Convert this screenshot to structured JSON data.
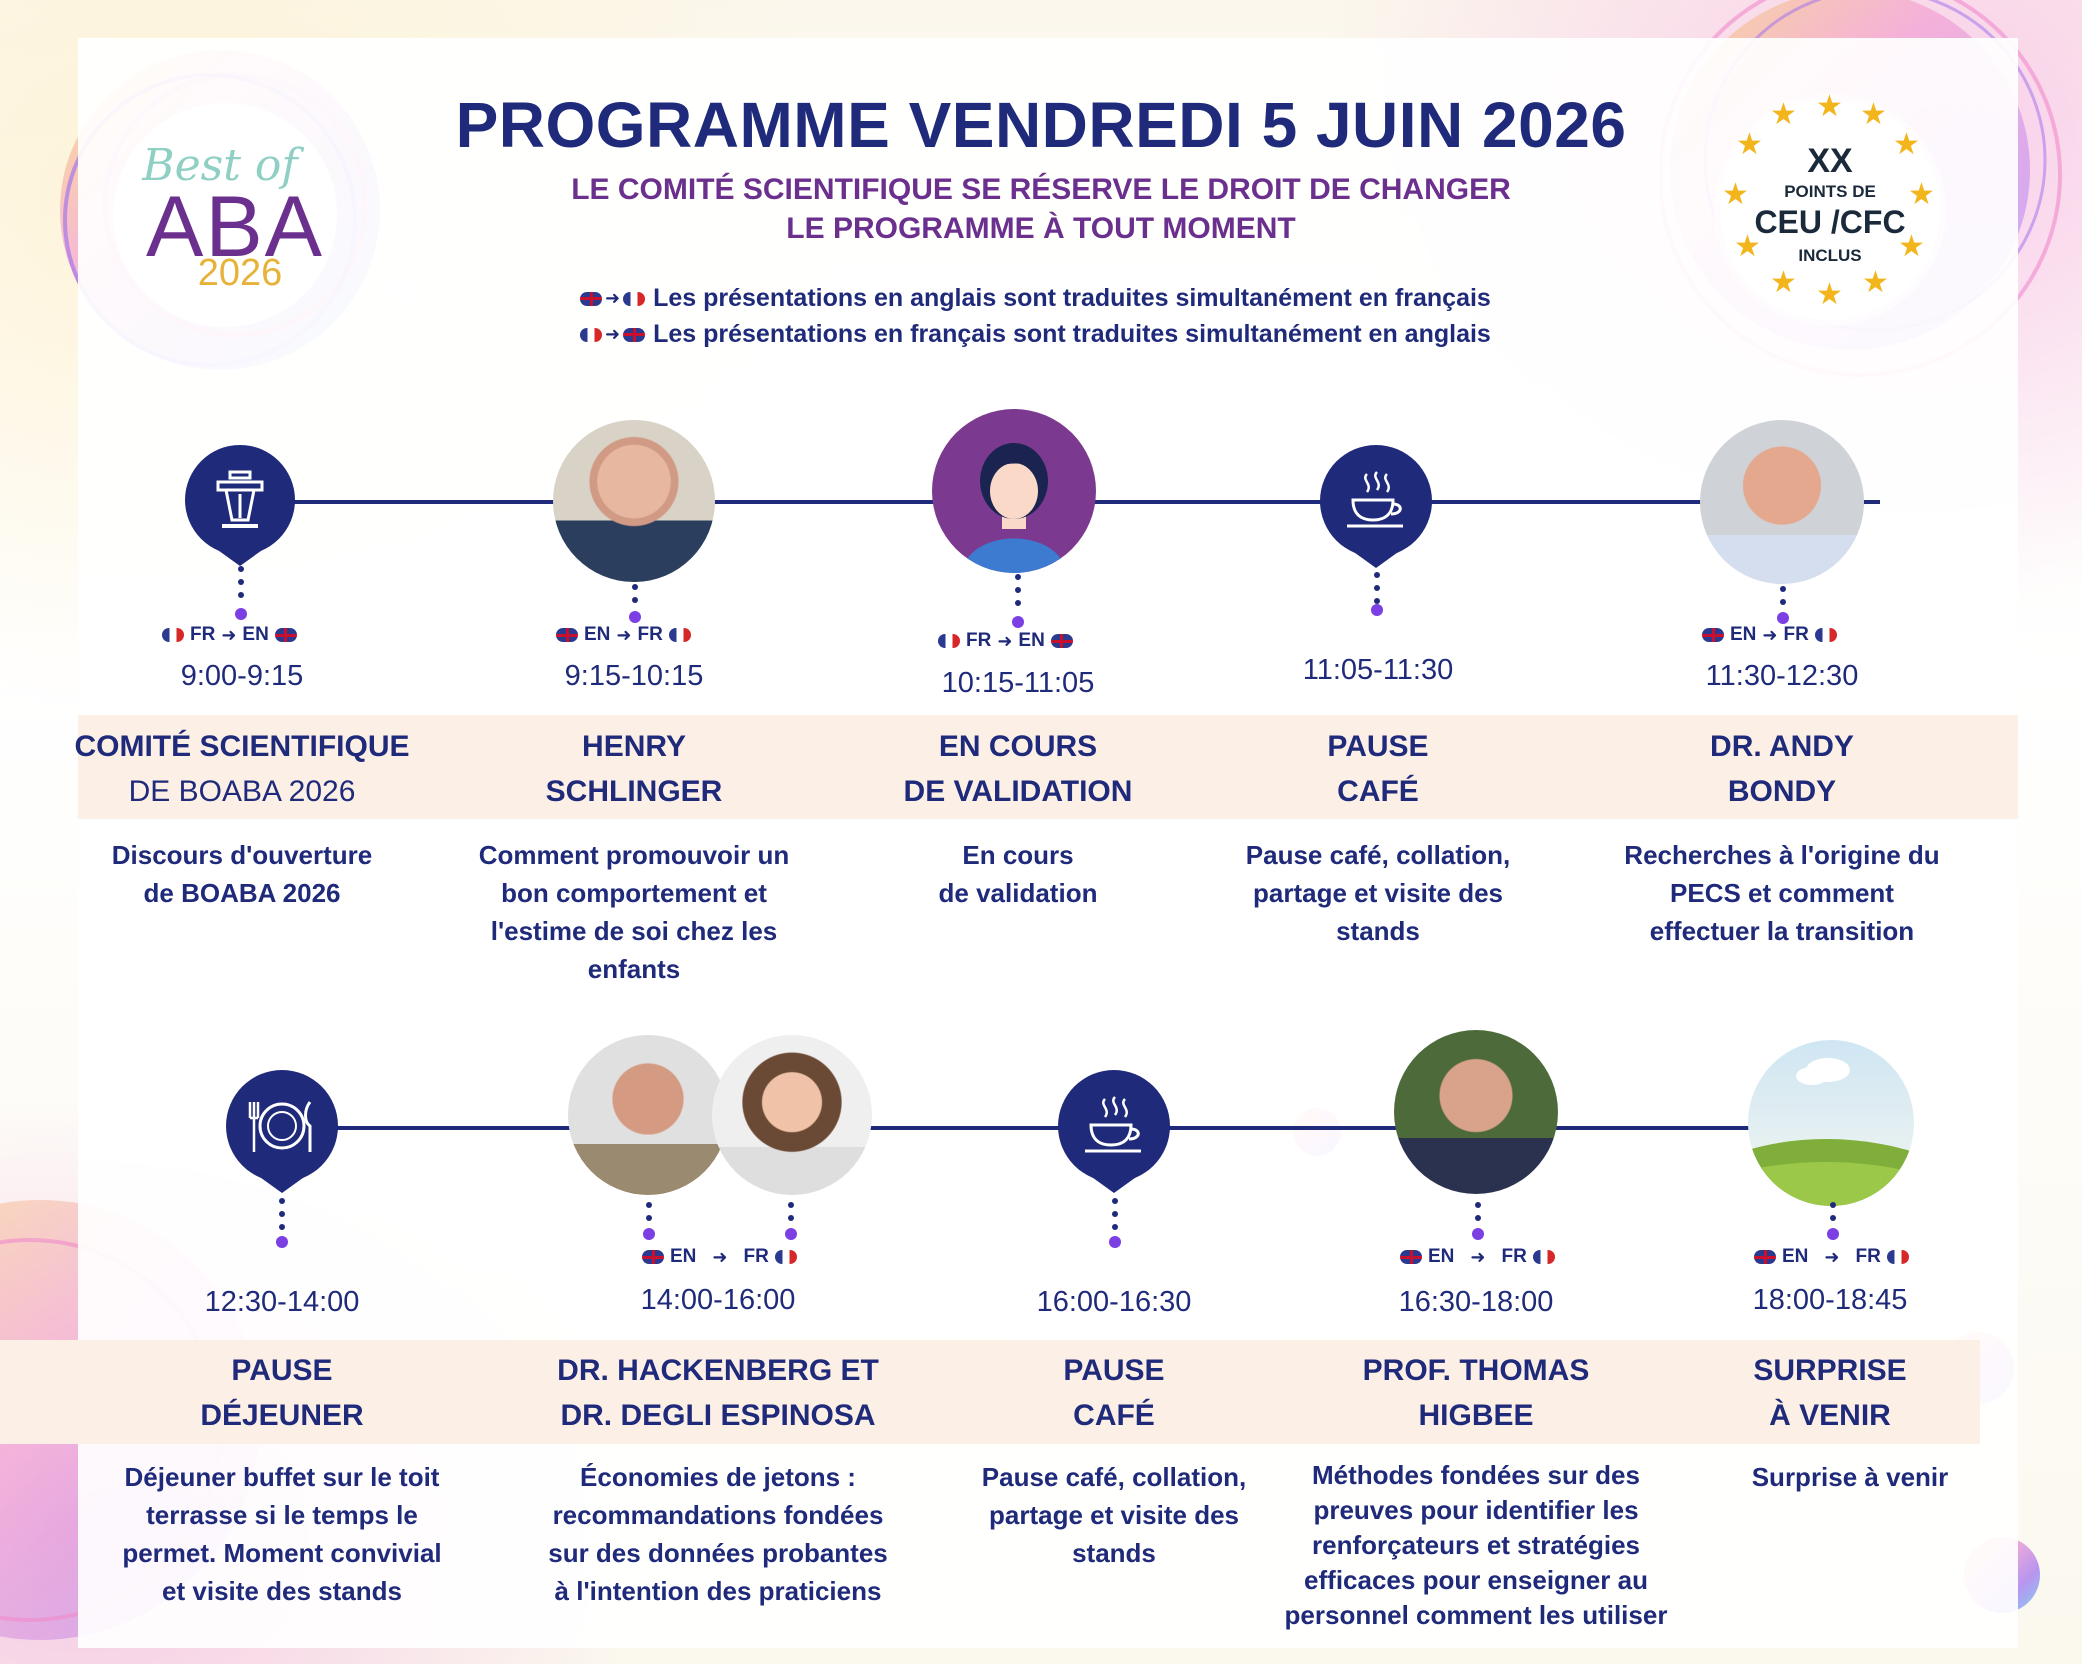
{
  "header": {
    "title": "PROGRAMME VENDREDI 5 JUIN 2026",
    "subtitle_line1": "LE COMITÉ SCIENTIFIQUE SE RÉSERVE LE DROIT DE CHANGER",
    "subtitle_line2": "LE PROGRAMME À TOUT MOMENT",
    "note_en_fr": "Les présentations en anglais sont traduites simultanément en français",
    "note_fr_en": "Les présentations en français sont traduites simultanément en anglais"
  },
  "logo": {
    "script": "Best of",
    "main": "ABA",
    "year": "2026"
  },
  "badge": {
    "line1": "XX",
    "line2": "POINTS DE",
    "line3": "CEU /CFC",
    "line4": "INCLUS"
  },
  "lang_labels": {
    "fr": "FR",
    "en": "EN"
  },
  "sessions": [
    {
      "id": "s1",
      "time": "9:00-9:15",
      "name_line1": "COMITÉ SCIENTIFIQUE",
      "name_line2": "DE BOABA 2026",
      "desc_lines": [
        "Discours d'ouverture",
        "de BOABA 2026"
      ],
      "icon": "podium-icon"
    },
    {
      "id": "s2",
      "time": "9:15-10:15",
      "name_line1": "HENRY",
      "name_line2": "SCHLINGER",
      "desc_lines": [
        "Comment promouvoir un",
        "bon comportement et",
        "l'estime de soi chez les",
        "enfants"
      ],
      "icon": "speaker-photo"
    },
    {
      "id": "s3",
      "time": "10:15-11:05",
      "name_line1": "EN COURS",
      "name_line2": "DE VALIDATION",
      "desc_lines": [
        "En cours",
        "de validation"
      ],
      "icon": "avatar-placeholder"
    },
    {
      "id": "s4",
      "time": "11:05-11:30",
      "name_line1": "PAUSE",
      "name_line2": "CAFÉ",
      "desc_lines": [
        "Pause café, collation,",
        "partage et visite des",
        "stands"
      ],
      "icon": "coffee-cup-icon"
    },
    {
      "id": "s5",
      "time": "11:30-12:30",
      "name_line1": "DR. ANDY",
      "name_line2": "BONDY",
      "desc_lines": [
        "Recherches à l'origine du",
        "PECS et comment",
        "effectuer la transition"
      ],
      "icon": "speaker-photo"
    },
    {
      "id": "s6",
      "time": "12:30-14:00",
      "name_line1": "PAUSE",
      "name_line2": "DÉJEUNER",
      "desc_lines": [
        "Déjeuner buffet sur le toit",
        "terrasse si le temps le",
        "permet. Moment convivial",
        "et visite des stands"
      ],
      "icon": "plate-cutlery-icon"
    },
    {
      "id": "s7",
      "time": "14:00-16:00",
      "name_line1": "DR. HACKENBERG ET",
      "name_line2": "DR. DEGLI ESPINOSA",
      "desc_lines": [
        "Économies de jetons :",
        "recommandations fondées",
        "sur des données probantes",
        "à l'intention des praticiens"
      ],
      "icon": "speaker-photo"
    },
    {
      "id": "s8",
      "time": "16:00-16:30",
      "name_line1": "PAUSE",
      "name_line2": "CAFÉ",
      "desc_lines": [
        "Pause café, collation,",
        "partage et visite des",
        "stands"
      ],
      "icon": "coffee-cup-icon"
    },
    {
      "id": "s9",
      "time": "16:30-18:00",
      "name_line1": "PROF. THOMAS",
      "name_line2": "HIGBEE",
      "desc_lines": [
        "Méthodes fondées sur des",
        "preuves pour identifier les",
        "renforçateurs et stratégies",
        "efficaces pour enseigner au",
        "personnel comment les utiliser"
      ],
      "icon": "speaker-photo"
    },
    {
      "id": "s10",
      "time": "18:00-18:45",
      "name_line1": "SURPRISE",
      "name_line2": "À VENIR",
      "desc_lines": [
        "Surprise à venir"
      ],
      "icon": "landscape-icon"
    }
  ],
  "colors": {
    "navy": "#1f2a7a",
    "purple": "#6b2f8e",
    "band": "#fcf0e6",
    "dot": "#7b3fe4",
    "star": "#f2b51c"
  }
}
